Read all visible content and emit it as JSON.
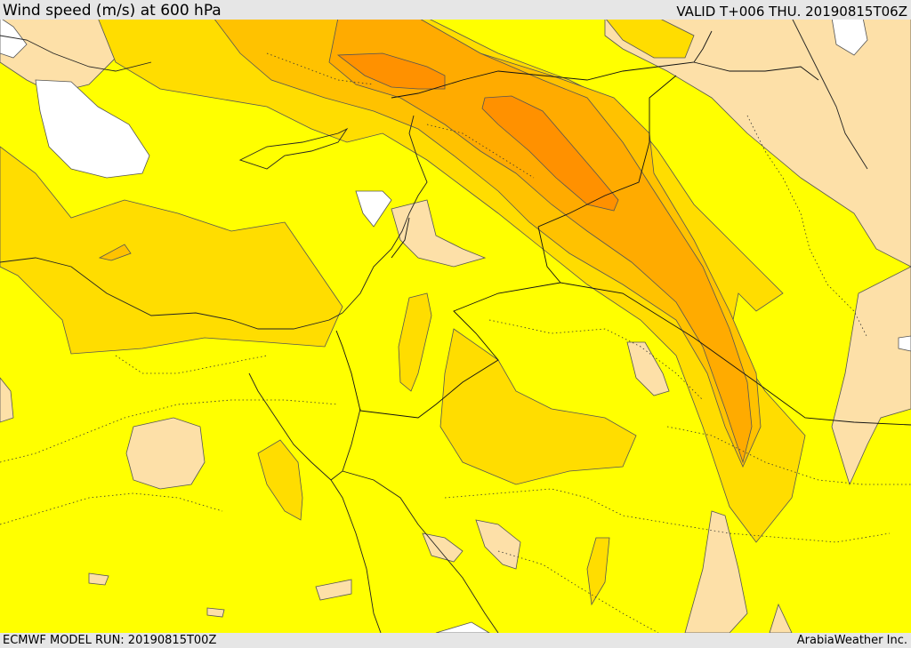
{
  "header": {
    "title": "Wind speed (m/s) at 600 hPa",
    "valid": "VALID T+006 THU. 20190815T06Z"
  },
  "footer": {
    "model_run": "ECMWF MODEL RUN: 20190815T00Z",
    "credit": "ArabiaWeather Inc."
  },
  "map": {
    "variable": "wind speed",
    "level": "600 hPa",
    "units": "m/s",
    "fill_colors": {
      "pale": "#fde0a8",
      "yellow": "#ffff00",
      "gold": "#ffdd00",
      "orange_light": "#ffc200",
      "orange": "#ffab00",
      "orange_dark": "#ff9100",
      "water": "#ffffff"
    }
  }
}
